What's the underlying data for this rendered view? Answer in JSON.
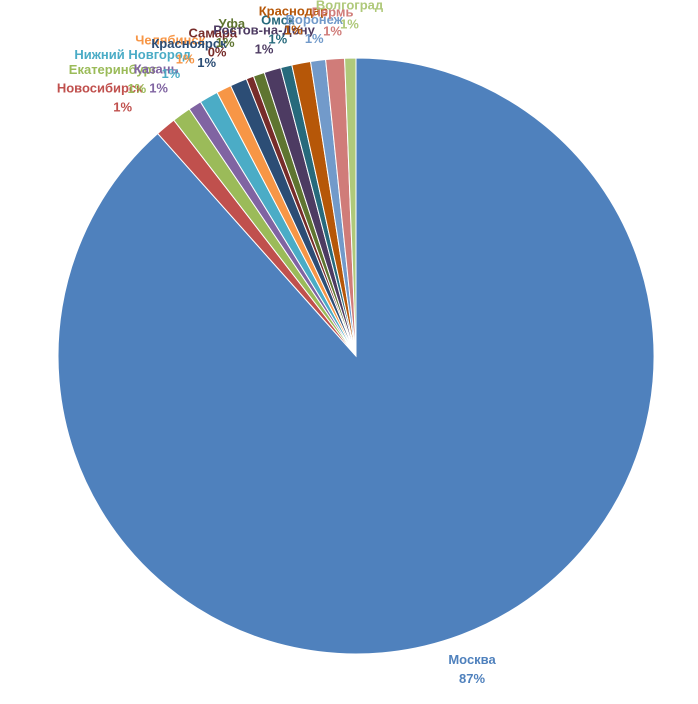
{
  "chart_data": {
    "type": "pie",
    "categories": [
      "Москва",
      "Новосибирск",
      "Екатеринбург",
      "Казань",
      "Нижний Новгород",
      "Челябинск",
      "Красноярск",
      "Самара",
      "Уфа",
      "Ростов-на-Дону",
      "Омск",
      "Краснодар",
      "Воронеж",
      "Пермь",
      "Волгоград"
    ],
    "values": [
      87,
      1.1,
      1.0,
      0.7,
      1.0,
      0.8,
      0.9,
      0.4,
      0.6,
      0.9,
      0.6,
      1.0,
      0.8,
      1.0,
      0.6
    ],
    "value_labels": [
      "87%",
      "1%",
      "1%",
      "1%",
      "1%",
      "1%",
      "1%",
      "0%",
      "1%",
      "1%",
      "1%",
      "1%",
      "1%",
      "1%",
      "1%"
    ],
    "colors": [
      "#4f81bd",
      "#c0504d",
      "#9bbb59",
      "#8064a2",
      "#4bacc6",
      "#f79646",
      "#2c4d75",
      "#772c2a",
      "#5f7530",
      "#4d3b62",
      "#276a7c",
      "#b65708",
      "#729aca",
      "#d07c79",
      "#afc97a"
    ]
  }
}
